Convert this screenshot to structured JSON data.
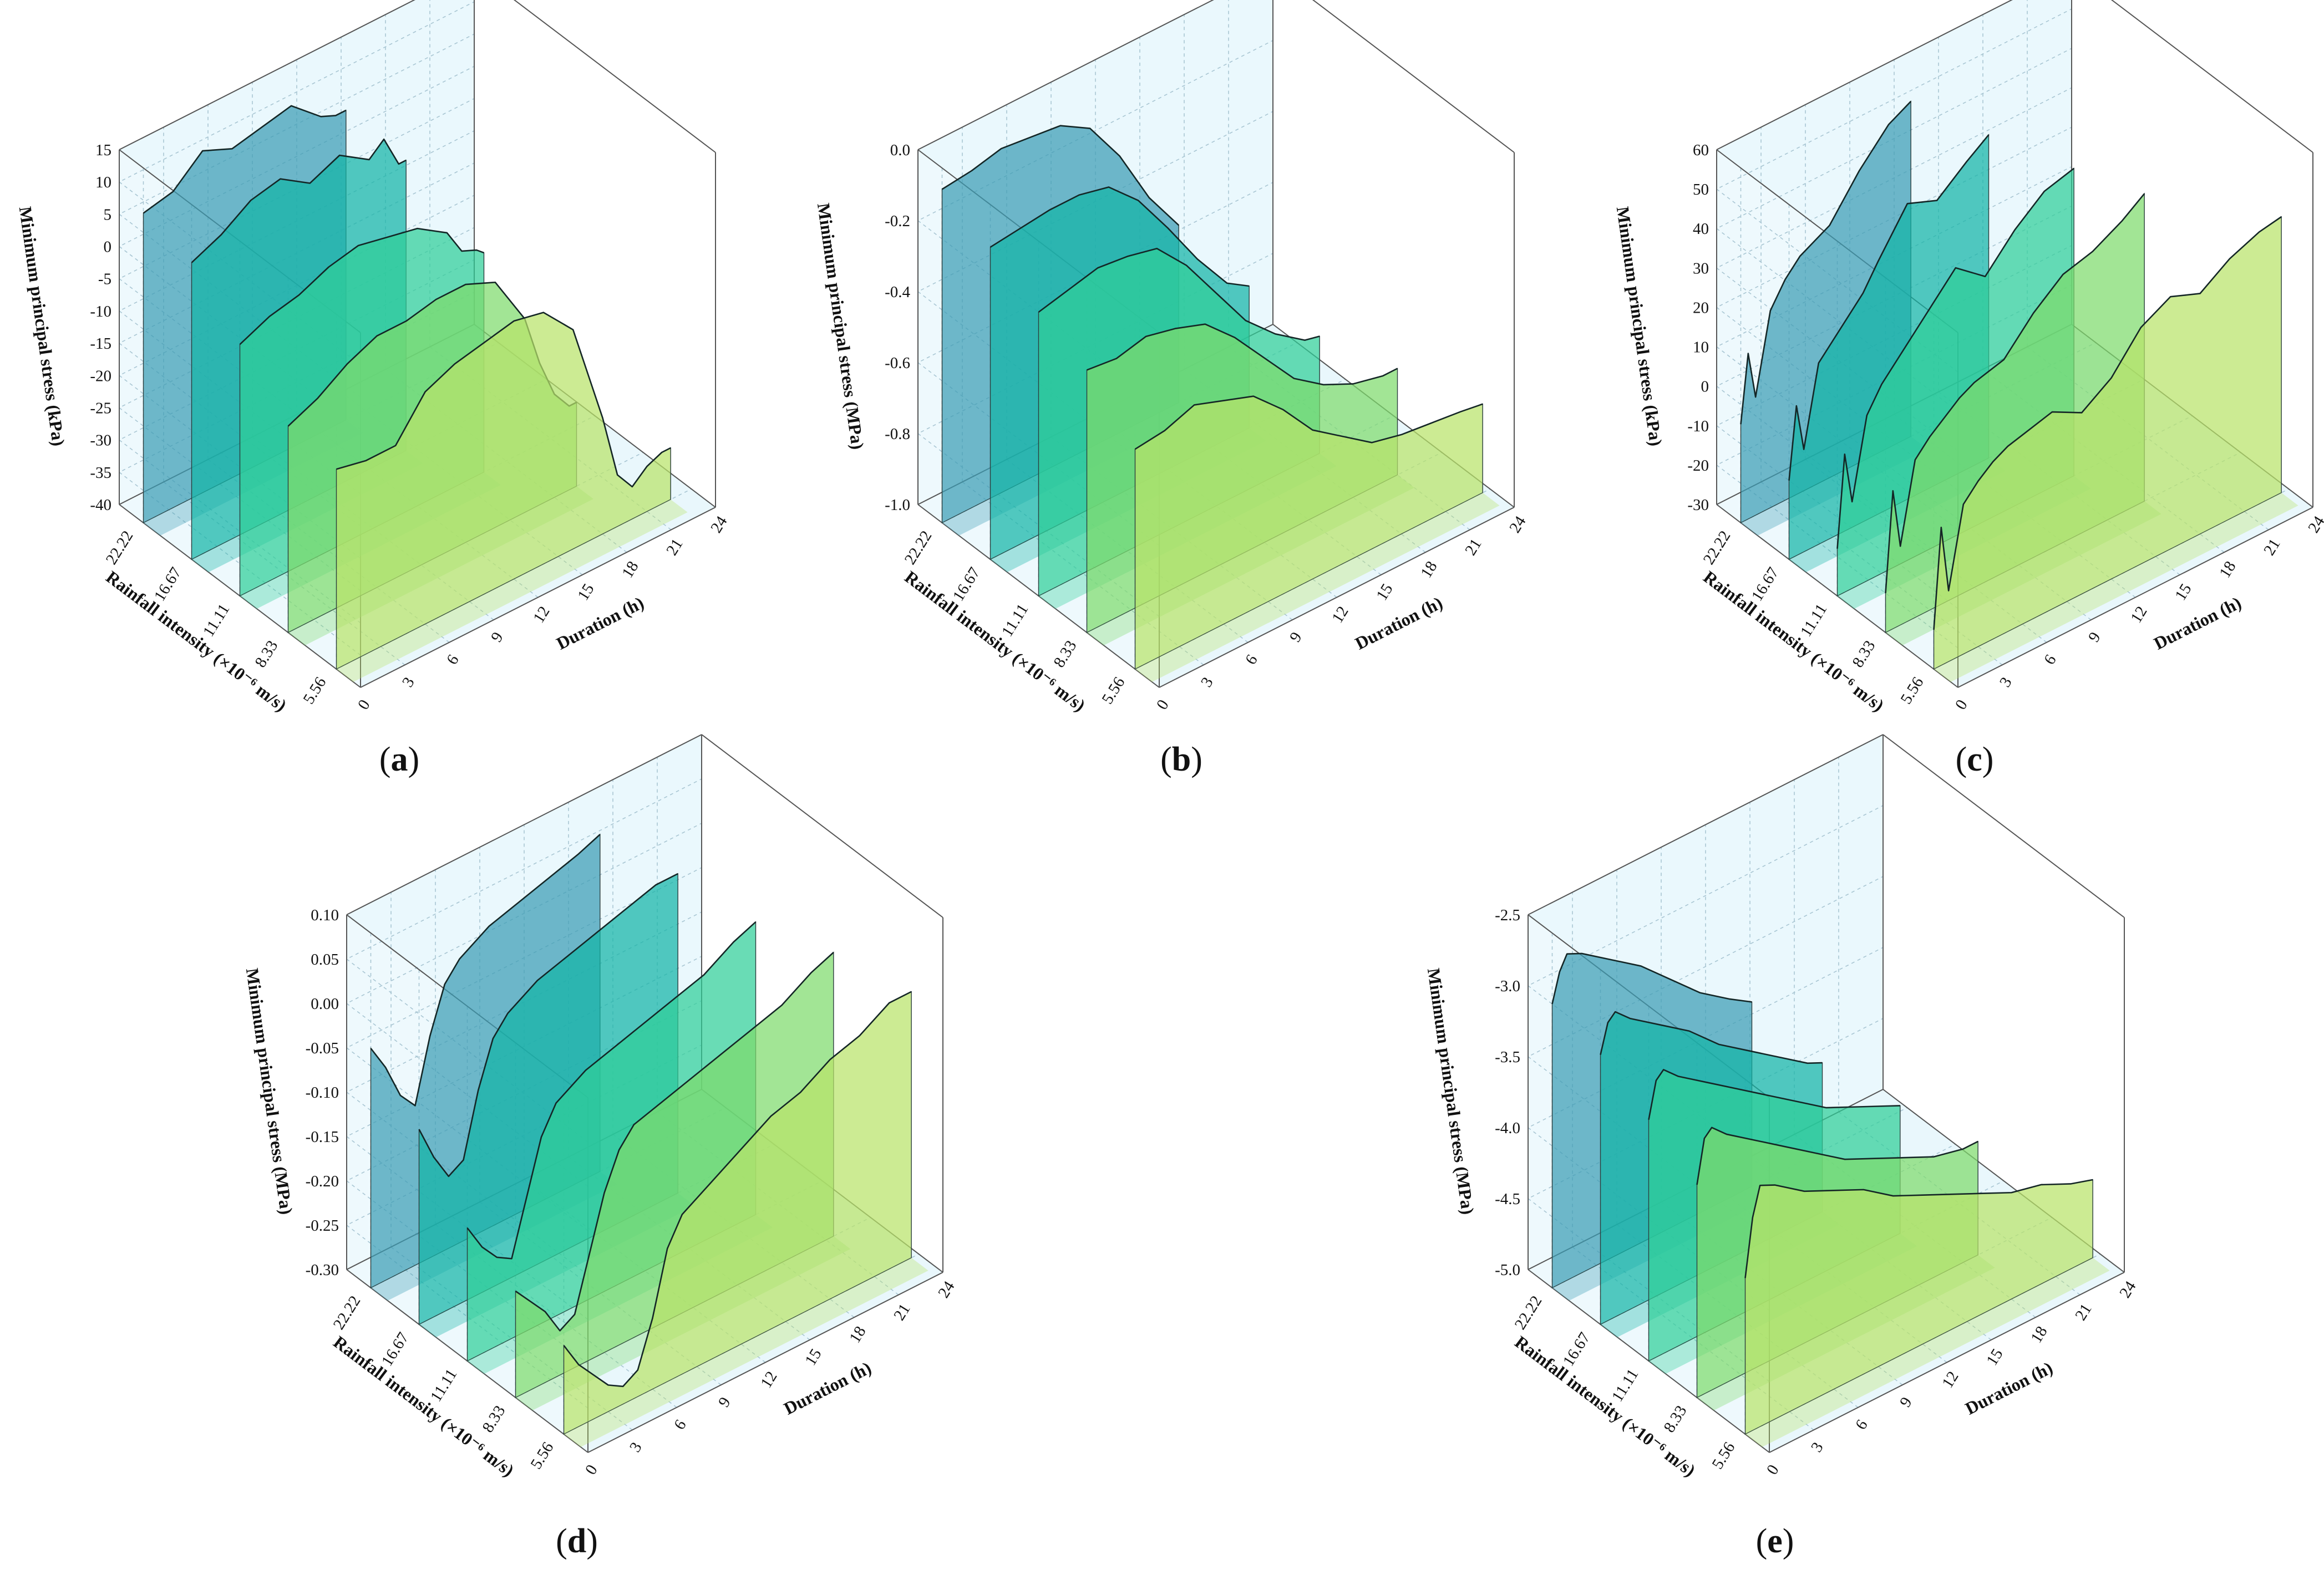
{
  "chart_data": [
    {
      "type": "area",
      "id": "a",
      "caption": "a",
      "title": "",
      "ylabel": "Minimum principal stress (kPa)",
      "xlabel": "Duration (h)",
      "zlabel": "Rainfall intensity (×10⁻⁶ m/s)",
      "ylim": [
        -40,
        15
      ],
      "yticks": [
        "-40",
        "-35",
        "-30",
        "-25",
        "-20",
        "-15",
        "-10",
        "-5",
        "0",
        "5",
        "10",
        "15"
      ],
      "xlim": [
        0,
        24
      ],
      "xticks": [
        "0",
        "3",
        "6",
        "9",
        "12",
        "15",
        "18",
        "21",
        "24"
      ],
      "categories": [
        "5.56",
        "8.33",
        "11.11",
        "16.67",
        "22.22"
      ],
      "series": [
        {
          "name": "5.56",
          "color": "#b9e36a",
          "x": [
            0,
            2,
            4,
            6,
            8,
            10,
            12,
            14,
            16,
            17,
            18,
            19,
            20,
            21,
            22,
            22.6
          ],
          "values": [
            -9,
            -10,
            -10,
            -4,
            -2,
            -1,
            0,
            -1,
            -6,
            -14,
            -22,
            -32,
            -35,
            -33,
            -32,
            -32
          ]
        },
        {
          "name": "8.33",
          "color": "#7edb6c",
          "x": [
            0,
            2,
            4,
            6,
            8,
            10,
            12,
            14,
            16,
            17,
            18,
            19,
            19.5
          ],
          "values": [
            -8,
            -6,
            -3,
            -1,
            -1,
            0,
            0,
            -2,
            -10,
            -18,
            -24,
            -27,
            -27
          ]
        },
        {
          "name": "11.11",
          "color": "#2fcf98",
          "x": [
            0,
            2,
            4,
            6,
            8,
            10,
            12,
            14,
            15,
            16,
            16.5
          ],
          "values": [
            -1,
            1,
            2,
            4,
            5,
            4,
            3,
            0,
            -4,
            -5,
            -6
          ]
        },
        {
          "name": "16.67",
          "color": "#14b4a6",
          "x": [
            0,
            2,
            4,
            6,
            8,
            10,
            12,
            13,
            14,
            14.5
          ],
          "values": [
            6,
            8,
            11,
            12,
            9,
            11,
            8,
            10,
            5,
            5
          ]
        },
        {
          "name": "22.22",
          "color": "#3c9db4",
          "x": [
            0,
            2,
            4,
            6,
            8,
            10,
            12,
            13,
            13.7
          ],
          "values": [
            8,
            9,
            13,
            11,
            12,
            13,
            9,
            8,
            8
          ]
        }
      ]
    },
    {
      "type": "area",
      "id": "b",
      "caption": "b",
      "title": "",
      "ylabel": "Minimum principal stress (MPa)",
      "xlabel": "Duration (h)",
      "zlabel": "Rainfall intensity (×10⁻⁶ m/s)",
      "ylim": [
        -1.0,
        0.0
      ],
      "yticks": [
        "-1.0",
        "-0.8",
        "-0.6",
        "-0.4",
        "-0.2",
        "0.0"
      ],
      "xlim": [
        0,
        24
      ],
      "xticks": [
        "0",
        "3",
        "6",
        "9",
        "12",
        "15",
        "18",
        "21",
        "24"
      ],
      "categories": [
        "5.56",
        "8.33",
        "11.11",
        "16.67",
        "22.22"
      ],
      "series": [
        {
          "name": "5.56",
          "color": "#b9e36a",
          "x": [
            0,
            2,
            4,
            6,
            8,
            10,
            12,
            14,
            16,
            18,
            20,
            22,
            23.5
          ],
          "values": [
            -0.38,
            -0.37,
            -0.34,
            -0.37,
            -0.4,
            -0.48,
            -0.58,
            -0.64,
            -0.7,
            -0.72,
            -0.73,
            -0.74,
            -0.75
          ]
        },
        {
          "name": "8.33",
          "color": "#7edb6c",
          "x": [
            0,
            2,
            4,
            6,
            8,
            10,
            12,
            14,
            16,
            18,
            20,
            21
          ],
          "values": [
            -0.26,
            -0.27,
            -0.25,
            -0.27,
            -0.3,
            -0.38,
            -0.48,
            -0.58,
            -0.64,
            -0.68,
            -0.7,
            -0.7
          ]
        },
        {
          "name": "11.11",
          "color": "#2fcf98",
          "x": [
            0,
            2,
            4,
            6,
            8,
            10,
            12,
            14,
            16,
            18,
            19
          ],
          "values": [
            -0.2,
            -0.18,
            -0.16,
            -0.17,
            -0.19,
            -0.28,
            -0.4,
            -0.52,
            -0.6,
            -0.66,
            -0.67
          ]
        },
        {
          "name": "16.67",
          "color": "#14b4a6",
          "x": [
            0,
            2,
            4,
            6,
            8,
            10,
            12,
            14,
            16,
            17.5
          ],
          "values": [
            -0.12,
            -0.11,
            -0.1,
            -0.1,
            -0.12,
            -0.2,
            -0.32,
            -0.45,
            -0.56,
            -0.6
          ]
        },
        {
          "name": "22.22",
          "color": "#3c9db4",
          "x": [
            0,
            2,
            4,
            6,
            8,
            10,
            12,
            14,
            16
          ],
          "values": [
            -0.06,
            -0.05,
            -0.03,
            -0.04,
            -0.05,
            -0.1,
            -0.22,
            -0.38,
            -0.5
          ]
        }
      ]
    },
    {
      "type": "area",
      "id": "c",
      "caption": "c",
      "title": "",
      "ylabel": "Minimum principal stress (kPa)",
      "xlabel": "Duration (h)",
      "zlabel": "Rainfall intensity (×10⁻⁶ m/s)",
      "ylim": [
        -30,
        60
      ],
      "yticks": [
        "-30",
        "-20",
        "-10",
        "0",
        "10",
        "20",
        "30",
        "40",
        "50",
        "60"
      ],
      "xlim": [
        0,
        24
      ],
      "xticks": [
        "0",
        "3",
        "6",
        "9",
        "12",
        "15",
        "18",
        "21",
        "24"
      ],
      "categories": [
        "5.56",
        "8.33",
        "11.11",
        "16.67",
        "22.22"
      ],
      "series": [
        {
          "name": "5.56",
          "color": "#b9e36a",
          "x": [
            0,
            0.5,
            1,
            2,
            3,
            4,
            5,
            6,
            8,
            10,
            12,
            14,
            16,
            18,
            20,
            22,
            23.5
          ],
          "values": [
            -20,
            5,
            -12,
            8,
            12,
            15,
            17,
            18,
            20,
            16,
            21,
            30,
            34,
            31,
            36,
            39,
            40
          ]
        },
        {
          "name": "8.33",
          "color": "#7edb6c",
          "x": [
            0,
            0.5,
            1,
            2,
            3,
            4,
            5,
            6,
            8,
            10,
            12,
            14,
            16,
            17.5
          ],
          "values": [
            -20,
            5,
            -10,
            10,
            14,
            17,
            20,
            22,
            24,
            32,
            38,
            40,
            44,
            48
          ]
        },
        {
          "name": "11.11",
          "color": "#2fcf98",
          "x": [
            0,
            0.5,
            1,
            2,
            3,
            4,
            5,
            6,
            8,
            10,
            12,
            14,
            16
          ],
          "values": [
            -18,
            5,
            -8,
            12,
            18,
            22,
            26,
            30,
            38,
            32,
            40,
            46,
            48
          ]
        },
        {
          "name": "16.67",
          "color": "#14b4a6",
          "x": [
            0,
            0.5,
            1,
            2,
            3,
            4,
            5,
            6,
            8,
            10,
            12,
            13.5
          ],
          "values": [
            -10,
            8,
            -4,
            16,
            20,
            24,
            28,
            34,
            45,
            42,
            48,
            52
          ]
        },
        {
          "name": "22.22",
          "color": "#3c9db4",
          "x": [
            0,
            0.5,
            1,
            2,
            3,
            4,
            5,
            6,
            8,
            10,
            11.5
          ],
          "values": [
            -5,
            12,
            0,
            20,
            26,
            30,
            32,
            34,
            44,
            52,
            55
          ]
        }
      ]
    },
    {
      "type": "area",
      "id": "d",
      "caption": "d",
      "title": "",
      "ylabel": "Minimum principal stress (MPa)",
      "xlabel": "Duration (h)",
      "zlabel": "Rainfall intensity (×10⁻⁶ m/s)",
      "ylim": [
        -0.3,
        0.1
      ],
      "yticks": [
        "-0.30",
        "-0.25",
        "-0.20",
        "-0.15",
        "-0.10",
        "-0.05",
        "0.00",
        "0.05",
        "0.10"
      ],
      "xlim": [
        0,
        24
      ],
      "xticks": [
        "0",
        "3",
        "6",
        "9",
        "12",
        "15",
        "18",
        "21",
        "24"
      ],
      "categories": [
        "5.56",
        "8.33",
        "11.11",
        "16.67",
        "22.22"
      ],
      "series": [
        {
          "name": "5.56",
          "color": "#b9e36a",
          "x": [
            0,
            1,
            2,
            3,
            4,
            5,
            6,
            7,
            8,
            10,
            12,
            14,
            16,
            18,
            20,
            22,
            23.5
          ],
          "values": [
            -0.2,
            -0.23,
            -0.25,
            -0.27,
            -0.28,
            -0.27,
            -0.22,
            -0.15,
            -0.12,
            -0.1,
            -0.08,
            -0.06,
            -0.05,
            -0.03,
            -0.02,
            -0.0,
            0.0
          ]
        },
        {
          "name": "8.33",
          "color": "#7edb6c",
          "x": [
            0,
            1,
            2,
            3,
            4,
            5,
            6,
            7,
            8,
            10,
            12,
            14,
            16,
            18,
            20,
            21.5
          ],
          "values": [
            -0.18,
            -0.2,
            -0.22,
            -0.25,
            -0.24,
            -0.18,
            -0.12,
            -0.08,
            -0.06,
            -0.05,
            -0.04,
            -0.03,
            -0.02,
            -0.01,
            0.01,
            0.02
          ]
        },
        {
          "name": "11.11",
          "color": "#2fcf98",
          "x": [
            0,
            1,
            2,
            3,
            4,
            5,
            6,
            8,
            10,
            12,
            14,
            16,
            18,
            19.5
          ],
          "values": [
            -0.15,
            -0.18,
            -0.2,
            -0.21,
            -0.15,
            -0.09,
            -0.06,
            -0.04,
            -0.03,
            -0.02,
            -0.01,
            0.0,
            0.02,
            0.03
          ]
        },
        {
          "name": "16.67",
          "color": "#14b4a6",
          "x": [
            0,
            1,
            2,
            3,
            4,
            5,
            6,
            8,
            10,
            12,
            14,
            16,
            17.5
          ],
          "values": [
            -0.08,
            -0.12,
            -0.15,
            -0.14,
            -0.07,
            -0.02,
            0.0,
            0.02,
            0.03,
            0.04,
            0.05,
            0.06,
            0.06
          ]
        },
        {
          "name": "22.22",
          "color": "#3c9db4",
          "x": [
            0,
            1,
            2,
            3,
            4,
            5,
            6,
            8,
            10,
            12,
            14,
            15.5
          ],
          "values": [
            -0.03,
            -0.06,
            -0.1,
            -0.12,
            -0.05,
            0.0,
            0.02,
            0.04,
            0.05,
            0.06,
            0.07,
            0.08
          ]
        }
      ]
    },
    {
      "type": "area",
      "id": "e",
      "caption": "e",
      "title": "",
      "ylabel": "Minimum principal stress (MPa)",
      "xlabel": "Duration (h)",
      "zlabel": "Rainfall intensity (×10⁻⁶ m/s)",
      "ylim": [
        -5.0,
        -2.5
      ],
      "yticks": [
        "-5.0",
        "-4.5",
        "-4.0",
        "-3.5",
        "-3.0",
        "-2.5"
      ],
      "xlim": [
        0,
        24
      ],
      "xticks": [
        "0",
        "3",
        "6",
        "9",
        "12",
        "15",
        "18",
        "21",
        "24"
      ],
      "categories": [
        "5.56",
        "8.33",
        "11.11",
        "16.67",
        "22.22"
      ],
      "series": [
        {
          "name": "5.56",
          "color": "#b9e36a",
          "x": [
            0,
            0.5,
            1,
            2,
            4,
            6,
            8,
            10,
            12,
            14,
            16,
            18,
            20,
            22,
            23.5
          ],
          "values": [
            -3.9,
            -3.5,
            -3.3,
            -3.35,
            -3.5,
            -3.6,
            -3.7,
            -3.85,
            -3.95,
            -4.05,
            -4.15,
            -4.25,
            -4.3,
            -4.4,
            -4.45
          ]
        },
        {
          "name": "8.33",
          "color": "#7edb6c",
          "x": [
            0,
            0.5,
            1,
            2,
            4,
            6,
            8,
            10,
            12,
            14,
            16,
            18,
            19
          ],
          "values": [
            -3.5,
            -3.2,
            -3.15,
            -3.25,
            -3.4,
            -3.55,
            -3.7,
            -3.85,
            -3.95,
            -4.05,
            -4.15,
            -4.2,
            -4.2
          ]
        },
        {
          "name": "11.11",
          "color": "#2fcf98",
          "x": [
            0,
            0.5,
            1,
            2,
            4,
            6,
            8,
            10,
            12,
            14,
            16,
            17
          ],
          "values": [
            -3.3,
            -3.05,
            -3.0,
            -3.1,
            -3.25,
            -3.4,
            -3.55,
            -3.7,
            -3.85,
            -3.95,
            -4.05,
            -4.1
          ]
        },
        {
          "name": "16.67",
          "color": "#14b4a6",
          "x": [
            0,
            0.5,
            1,
            2,
            4,
            6,
            8,
            10,
            12,
            14,
            15
          ],
          "values": [
            -3.1,
            -2.9,
            -2.85,
            -2.95,
            -3.1,
            -3.25,
            -3.45,
            -3.6,
            -3.75,
            -3.9,
            -3.95
          ]
        },
        {
          "name": "22.22",
          "color": "#3c9db4",
          "x": [
            0,
            0.5,
            1,
            2,
            4,
            6,
            8,
            10,
            12,
            13.5
          ],
          "values": [
            -3.0,
            -2.8,
            -2.7,
            -2.75,
            -2.9,
            -3.05,
            -3.25,
            -3.45,
            -3.6,
            -3.7
          ]
        }
      ]
    }
  ]
}
